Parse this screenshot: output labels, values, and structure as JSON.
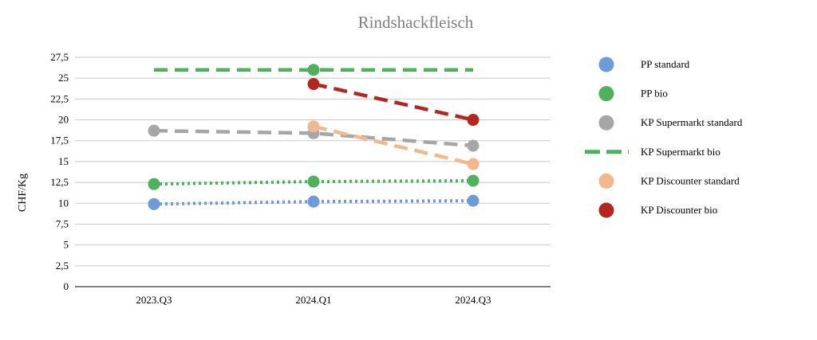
{
  "chart_data": {
    "type": "line",
    "title": "Rindshackfleisch",
    "xlabel": "",
    "ylabel": "CHF/Kg",
    "categories": [
      "2023.Q3",
      "2024.Q1",
      "2024.Q3"
    ],
    "ylim": [
      0,
      27.5
    ],
    "yticks": [
      0,
      2.5,
      5,
      7.5,
      10,
      12.5,
      15,
      17.5,
      20,
      22.5,
      25,
      27.5
    ],
    "ytick_labels": [
      "0",
      "2,5",
      "5",
      "7,5",
      "10",
      "12,5",
      "15",
      "17,5",
      "20",
      "22,5",
      "25",
      "27,5"
    ],
    "grid": true,
    "legend_position": "right",
    "series": [
      {
        "name": "PP standard",
        "values": [
          9.9,
          10.2,
          10.3
        ],
        "color": "#6b9bd8",
        "line_style": "dotted",
        "marker": "circle"
      },
      {
        "name": "PP bio",
        "values": [
          12.3,
          12.6,
          12.7
        ],
        "color": "#4cb35c",
        "line_style": "dotted",
        "marker": "circle"
      },
      {
        "name": "KP Supermarkt standard",
        "values": [
          18.7,
          18.4,
          16.9
        ],
        "color": "#a6a6a6",
        "line_style": "dashed",
        "marker": "circle"
      },
      {
        "name": "KP Supermarkt bio",
        "values": [
          26,
          26,
          26
        ],
        "color": "#4cb35c",
        "line_style": "dashed",
        "marker": "none"
      },
      {
        "name": "KP Discounter standard",
        "values": [
          null,
          19.2,
          14.7
        ],
        "color": "#f0b88c",
        "line_style": "dashed",
        "marker": "circle"
      },
      {
        "name": "KP Discounter bio",
        "values": [
          null,
          24.3,
          20
        ],
        "color": "#b5261e",
        "line_style": "dashed",
        "marker": "circle"
      }
    ],
    "extra_markers": [
      {
        "series_index": 1,
        "category_index": 1,
        "value": 26
      }
    ]
  }
}
